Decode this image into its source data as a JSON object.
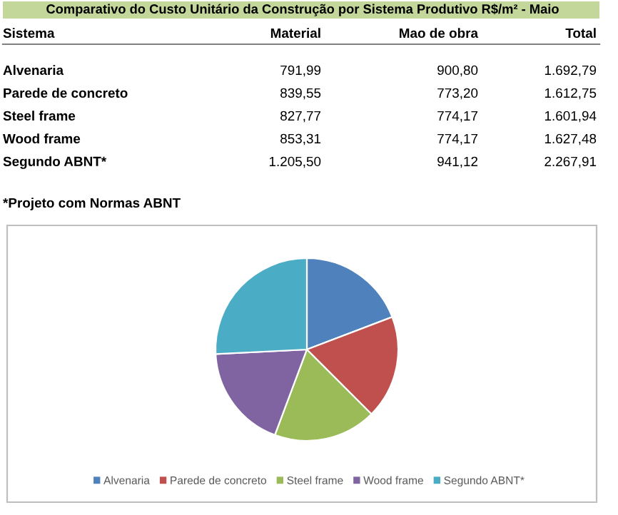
{
  "chart_data": {
    "type": "pie",
    "title": "Comparativo do Custo Unitário da Construção por Sistema Produtivo R$/m² - Maio",
    "categories": [
      "Alvenaria",
      "Parede de concreto",
      "Steel frame",
      "Wood frame",
      "Segundo ABNT*"
    ],
    "values": [
      19.2,
      18.3,
      18.2,
      18.5,
      25.8
    ],
    "colors": [
      "#4f81bd",
      "#c0504d",
      "#9bbb59",
      "#8064a2",
      "#4bacc6"
    ],
    "legend": "bottom",
    "annotations": [
      "Sistema",
      "Material",
      "Mao de obra",
      "Total",
      "Alvenaria",
      "791,99",
      "900,80",
      "1.692,79",
      "Parede de concreto",
      "839,55",
      "773,20",
      "1.612,75",
      "Steel frame",
      "827,77",
      "774,17",
      "1.601,94",
      "Wood frame",
      "853,31",
      "774,17",
      "1.627,48",
      "Segundo ABNT*",
      "1.205,50",
      "941,12",
      "2.267,91",
      "*Projeto com Normas ABNT"
    ]
  }
}
